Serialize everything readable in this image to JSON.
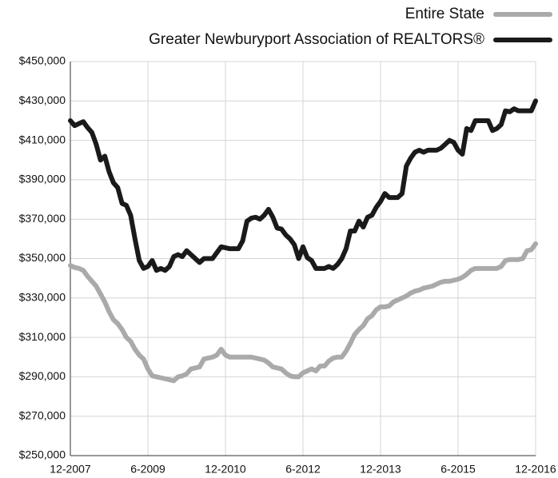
{
  "chart_data": {
    "type": "line",
    "categories": [
      "12-2007",
      null,
      null,
      null,
      null,
      null,
      null,
      null,
      null,
      null,
      null,
      null,
      null,
      null,
      null,
      null,
      null,
      null,
      "6-2009",
      null,
      null,
      null,
      null,
      null,
      null,
      null,
      null,
      null,
      null,
      null,
      null,
      null,
      null,
      null,
      null,
      null,
      "12-2010",
      null,
      null,
      null,
      null,
      null,
      null,
      null,
      null,
      null,
      null,
      null,
      null,
      null,
      null,
      null,
      null,
      null,
      "6-2012",
      null,
      null,
      null,
      null,
      null,
      null,
      null,
      null,
      null,
      null,
      null,
      null,
      null,
      null,
      null,
      null,
      null,
      "12-2013",
      null,
      null,
      null,
      null,
      null,
      null,
      null,
      null,
      null,
      null,
      null,
      null,
      null,
      null,
      null,
      null,
      null,
      "6-2015",
      null,
      null,
      null,
      null,
      null,
      null,
      null,
      null,
      null,
      null,
      null,
      null,
      null,
      null,
      null,
      null,
      null,
      "12-2016"
    ],
    "series": [
      {
        "name": "Entire State",
        "color": "#aaaaaa",
        "values": [
          346500,
          345500,
          345000,
          344000,
          341000,
          338500,
          336000,
          332000,
          328000,
          323000,
          319000,
          317000,
          314000,
          310000,
          308000,
          304000,
          301000,
          299000,
          294000,
          290500,
          290000,
          289500,
          289000,
          288500,
          288000,
          290000,
          290500,
          291500,
          294000,
          294500,
          295000,
          299000,
          299500,
          300000,
          301000,
          304000,
          301000,
          300000,
          300000,
          300000,
          300000,
          300000,
          300000,
          299500,
          299000,
          298500,
          297000,
          295000,
          294500,
          294000,
          292000,
          290500,
          290000,
          290000,
          292000,
          293000,
          294000,
          293000,
          295500,
          295500,
          298000,
          299500,
          300000,
          300000,
          303000,
          307000,
          311500,
          314000,
          316000,
          319500,
          321000,
          324000,
          325500,
          325500,
          326000,
          328000,
          329000,
          330000,
          331000,
          332500,
          333500,
          334000,
          335000,
          335500,
          336000,
          337000,
          338000,
          338500,
          338500,
          339000,
          339500,
          340500,
          342000,
          344000,
          345000,
          345000,
          345000,
          345000,
          345000,
          345000,
          346000,
          349000,
          349500,
          349500,
          349500,
          350000,
          354000,
          354500,
          357500
        ]
      },
      {
        "name": "Greater Newburyport Association of REALTORS®",
        "color": "#1a1a1a",
        "values": [
          420000,
          417500,
          418500,
          419500,
          416500,
          414000,
          408000,
          400000,
          402000,
          394000,
          388500,
          386000,
          378000,
          377000,
          372000,
          360000,
          349000,
          345000,
          346000,
          349000,
          344000,
          345000,
          344000,
          346000,
          351000,
          352000,
          351000,
          354000,
          352000,
          350000,
          348000,
          350000,
          350000,
          350000,
          353000,
          356000,
          355500,
          355000,
          355000,
          355000,
          359000,
          369000,
          370500,
          371000,
          370000,
          372000,
          375000,
          371000,
          365500,
          365000,
          362000,
          360000,
          357000,
          350000,
          356000,
          350500,
          349000,
          345000,
          345000,
          345000,
          346000,
          345000,
          347000,
          350000,
          355000,
          364000,
          364000,
          369000,
          366000,
          371000,
          372000,
          376000,
          379000,
          383000,
          381000,
          381000,
          381000,
          383000,
          397000,
          401000,
          404000,
          405000,
          404000,
          405000,
          405000,
          405000,
          406000,
          408000,
          410000,
          409000,
          405000,
          403000,
          416000,
          415000,
          420000,
          420000,
          420000,
          420000,
          415000,
          416000,
          418000,
          425000,
          424500,
          426000,
          425000,
          425000,
          425000,
          425000,
          430000
        ]
      }
    ],
    "ylim": [
      250000,
      450000
    ],
    "yticks": [
      {
        "value": 250000,
        "label": "$250,000"
      },
      {
        "value": 270000,
        "label": "$270,000"
      },
      {
        "value": 290000,
        "label": "$290,000"
      },
      {
        "value": 310000,
        "label": "$310,000"
      },
      {
        "value": 330000,
        "label": "$330,000"
      },
      {
        "value": 350000,
        "label": "$350,000"
      },
      {
        "value": 370000,
        "label": "$370,000"
      },
      {
        "value": 390000,
        "label": "$390,000"
      },
      {
        "value": 410000,
        "label": "$410,000"
      },
      {
        "value": 430000,
        "label": "$430,000"
      },
      {
        "value": 450000,
        "label": "$450,000"
      }
    ],
    "grid": true,
    "legend": "top-right"
  }
}
